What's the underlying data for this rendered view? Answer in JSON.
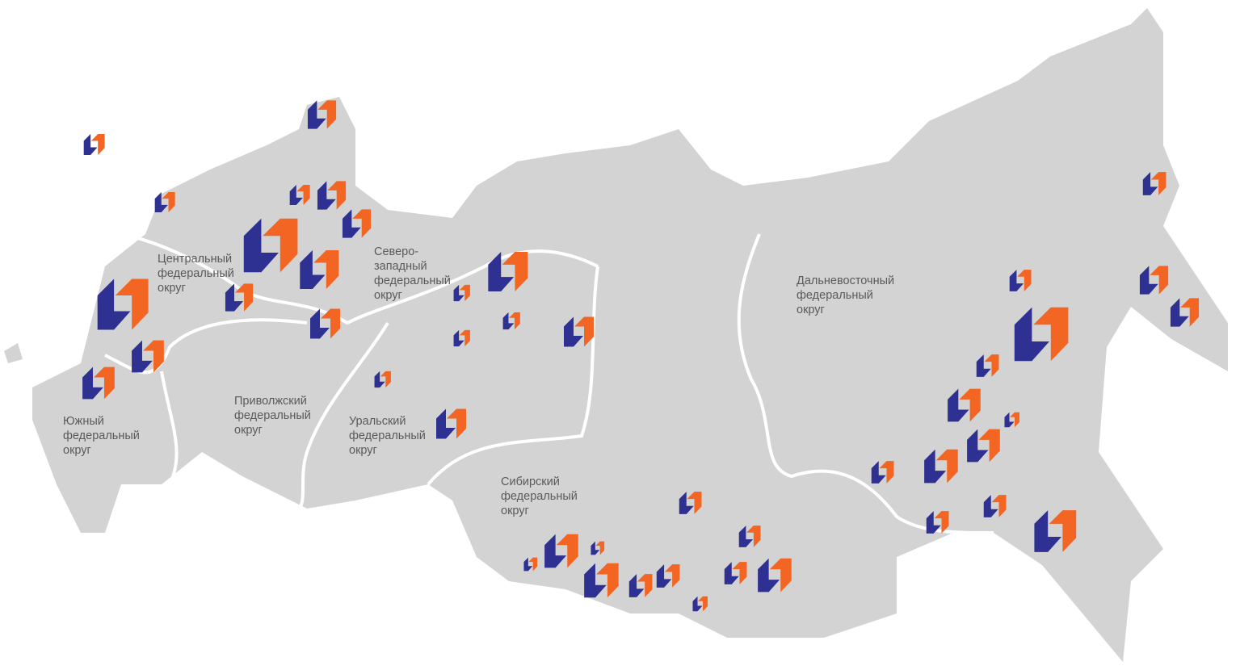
{
  "colors": {
    "land": "#d3d3d3",
    "border": "#ffffff",
    "marker_blue": "#2e3192",
    "marker_orange": "#f26522"
  },
  "icon": "company-logo-marker",
  "districts": [
    {
      "id": "central",
      "label": "Центральный\nфедеральный\nокруг"
    },
    {
      "id": "northwest",
      "label": "Северо-\nзападный\nфедеральный\nокруг"
    },
    {
      "id": "volga",
      "label": "Приволжский\nфедеральный\nокруг"
    },
    {
      "id": "south",
      "label": "Южный\nфедеральный\nокруг"
    },
    {
      "id": "ural",
      "label": "Уральский\nфедеральный\nокруг"
    },
    {
      "id": "siberia",
      "label": "Сибирский\nфедеральный\nокруг"
    },
    {
      "id": "fareast",
      "label": "Дальневосточный\nфедеральный\nокруг"
    }
  ]
}
